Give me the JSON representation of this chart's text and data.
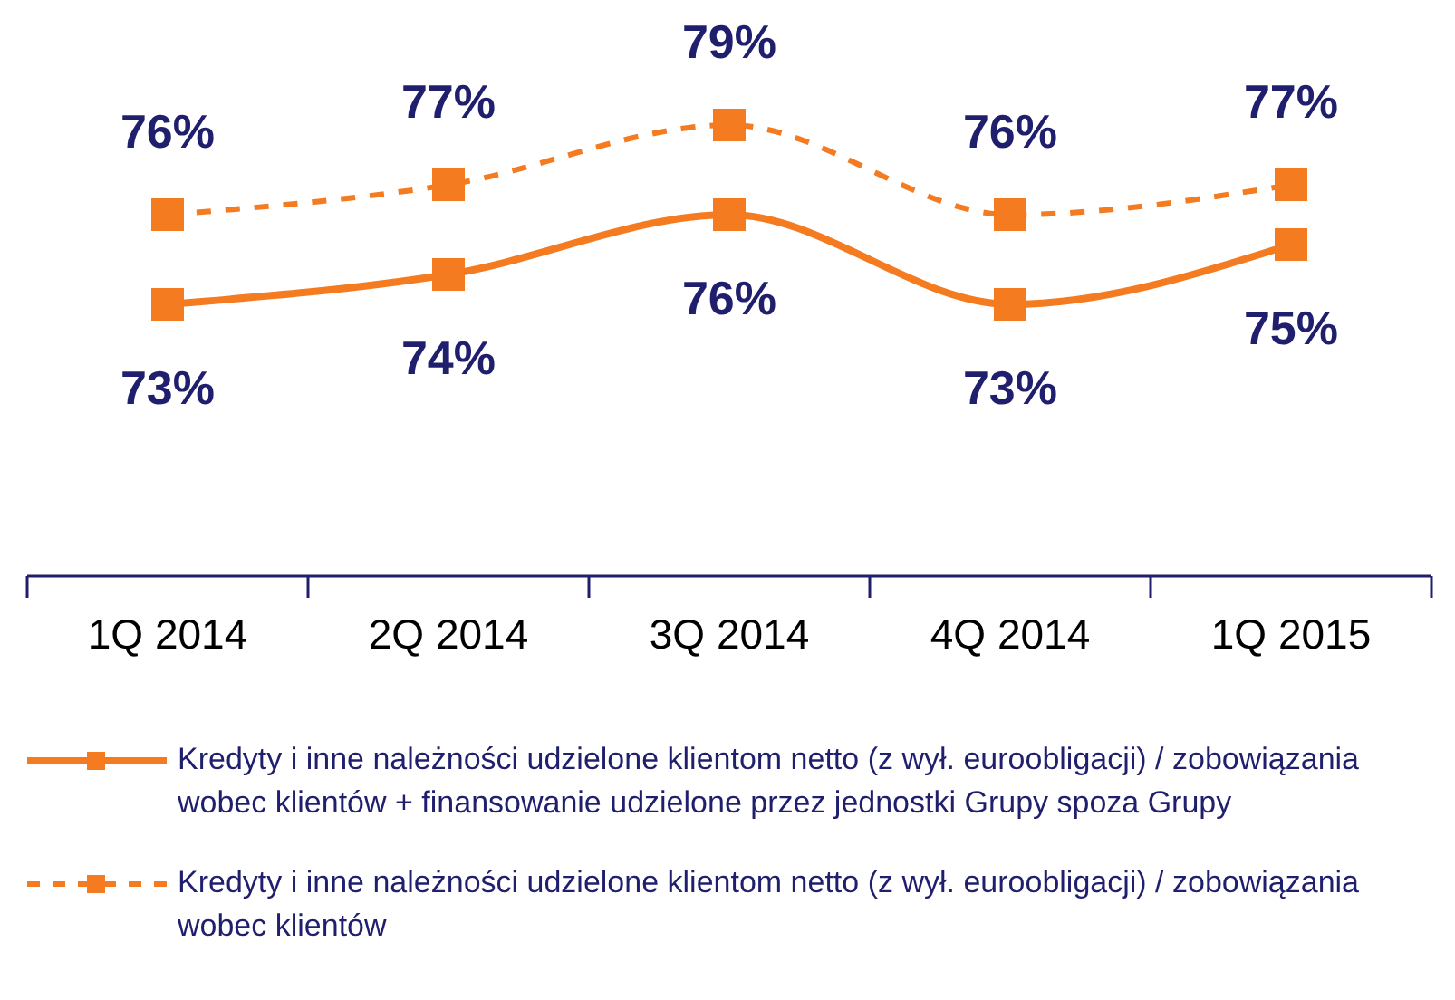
{
  "chart_data": {
    "type": "line",
    "categories": [
      "1Q 2014",
      "2Q 2014",
      "3Q 2014",
      "4Q 2014",
      "1Q 2015"
    ],
    "series": [
      {
        "name": "Kredyty i inne należności udzielone klientom netto (z wył. euroobligacji) / zobowiązania wobec klientów + finansowanie udzielone przez jednostki Grupy spoza Grupy",
        "color": "#f47b20",
        "values": [
          73,
          74,
          76,
          73,
          75
        ],
        "value_labels": [
          "73%",
          "74%",
          "76%",
          "73%",
          "75%"
        ],
        "line_style": "solid"
      },
      {
        "name": "Kredyty i inne należności udzielone klientom netto (z wył. euroobligacji) / zobowiązania wobec klientów",
        "color": "#f47b20",
        "values": [
          76,
          77,
          79,
          76,
          77
        ],
        "value_labels": [
          "76%",
          "77%",
          "79%",
          "76%",
          "77%"
        ],
        "line_style": "dashed"
      }
    ],
    "tick_labels": "x",
    "marker": "square",
    "legend": "bottom"
  }
}
